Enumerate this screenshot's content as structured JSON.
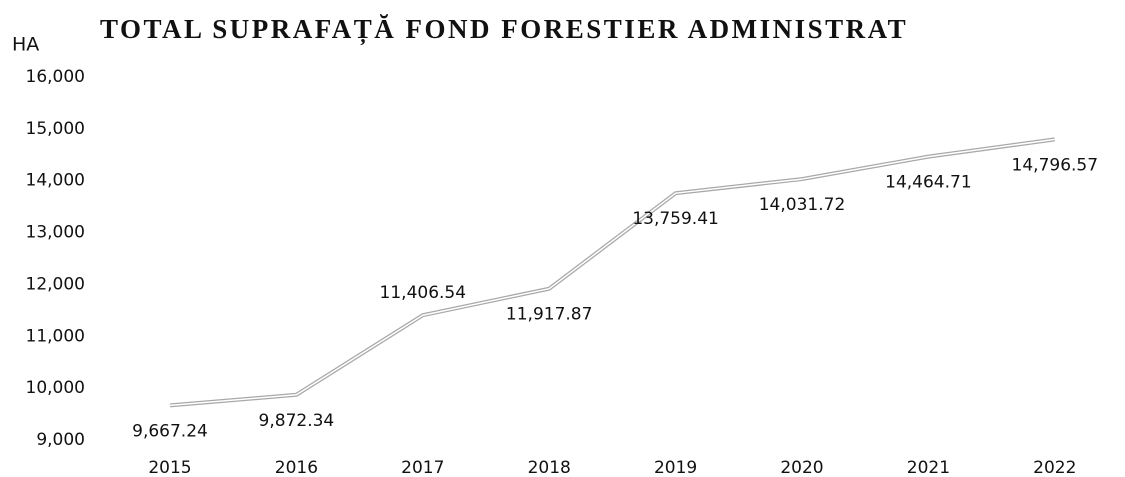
{
  "chart_data": {
    "type": "line",
    "title": "TOTAL SUPRAFAȚĂ FOND FORESTIER ADMINISTRAT",
    "y_label": "HA",
    "categories": [
      "2015",
      "2016",
      "2017",
      "2018",
      "2019",
      "2020",
      "2021",
      "2022"
    ],
    "values": [
      9667.24,
      9872.34,
      11406.54,
      11917.87,
      13759.41,
      14031.72,
      14464.71,
      14796.57
    ],
    "value_labels": [
      "9,667.24",
      "9,872.34",
      "11,406.54",
      "11,917.87",
      "13,759.41",
      "14,031.72",
      "14,464.71",
      "14,796.57"
    ],
    "color": "#a8a8a8",
    "ylim": [
      9000,
      16000
    ],
    "yticks": [
      {
        "value": 9000,
        "label": "9,000"
      },
      {
        "value": 10000,
        "label": "10,000"
      },
      {
        "value": 11000,
        "label": "11,000"
      },
      {
        "value": 12000,
        "label": "12,000"
      },
      {
        "value": 13000,
        "label": "13,000"
      },
      {
        "value": 14000,
        "label": "14,000"
      },
      {
        "value": 15000,
        "label": "15,000"
      },
      {
        "value": 16000,
        "label": "16,000"
      }
    ],
    "grid": false
  }
}
